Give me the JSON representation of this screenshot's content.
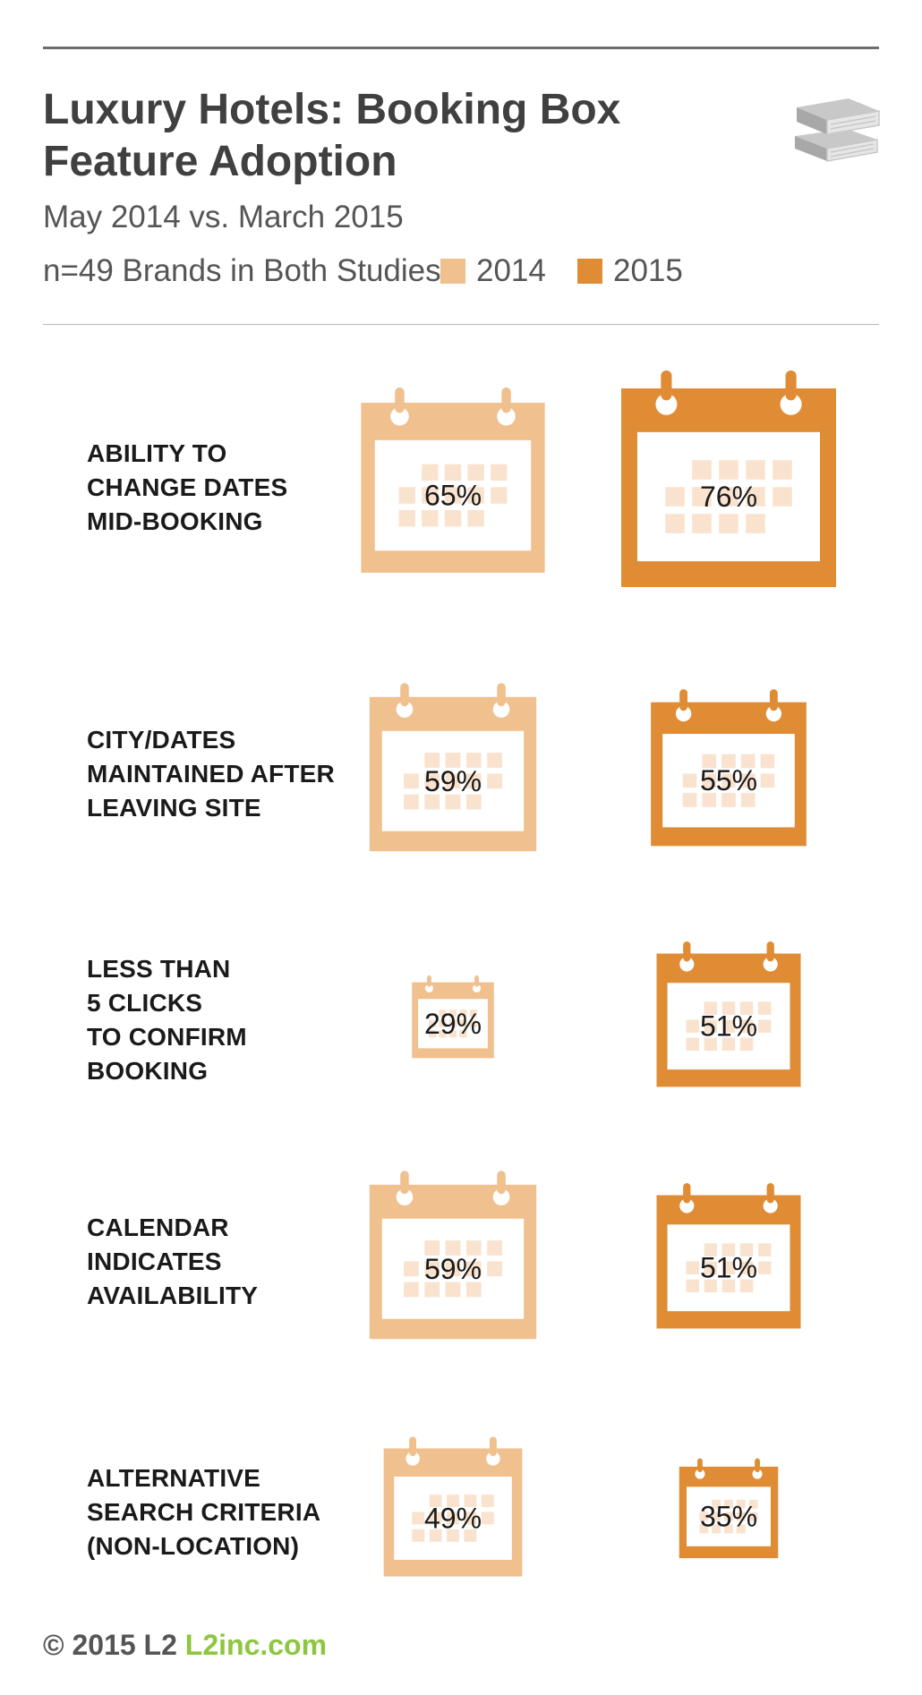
{
  "header": {
    "title_lines": [
      "Luxury Hotels: Booking Box",
      "Feature Adoption"
    ],
    "subtitle": "May 2014 vs. March 2015",
    "sample": "n=49 Brands in Both Studies",
    "icon": "books-icon"
  },
  "legend": [
    {
      "label": "2014",
      "color": "#f0c08e"
    },
    {
      "label": "2015",
      "color": "#e08c35"
    }
  ],
  "chart_data": {
    "type": "bar",
    "encoding": "calendar icon size proportional to share of brands",
    "categories": [
      "ABILITY TO CHANGE DATES MID-BOOKING",
      "CITY/DATES MAINTAINED AFTER LEAVING SITE",
      "LESS THAN 5 CLICKS TO CONFIRM BOOKING",
      "CALENDAR INDICATES AVAILABILITY",
      "ALTERNATIVE SEARCH CRITERIA (NON-LOCATION)"
    ],
    "category_lines": [
      [
        "ABILITY TO",
        "CHANGE DATES",
        "MID-BOOKING"
      ],
      [
        "CITY/DATES",
        "MAINTAINED AFTER",
        "LEAVING SITE"
      ],
      [
        "LESS THAN",
        "5 CLICKS",
        "TO CONFIRM",
        "BOOKING"
      ],
      [
        "CALENDAR",
        "INDICATES",
        "AVAILABILITY"
      ],
      [
        "ALTERNATIVE",
        "SEARCH CRITERIA",
        "(NON-LOCATION)"
      ]
    ],
    "series": [
      {
        "name": "2014",
        "values": [
          65,
          59,
          29,
          59,
          49
        ],
        "labels": [
          "65%",
          "59%",
          "29%",
          "59%",
          "49%"
        ]
      },
      {
        "name": "2015",
        "values": [
          76,
          55,
          51,
          51,
          35
        ],
        "labels": [
          "76%",
          "55%",
          "51%",
          "51%",
          "35%"
        ]
      }
    ],
    "unit": "%"
  },
  "footer": {
    "copyright": "© 2015 L2",
    "url": "L2inc.com"
  }
}
